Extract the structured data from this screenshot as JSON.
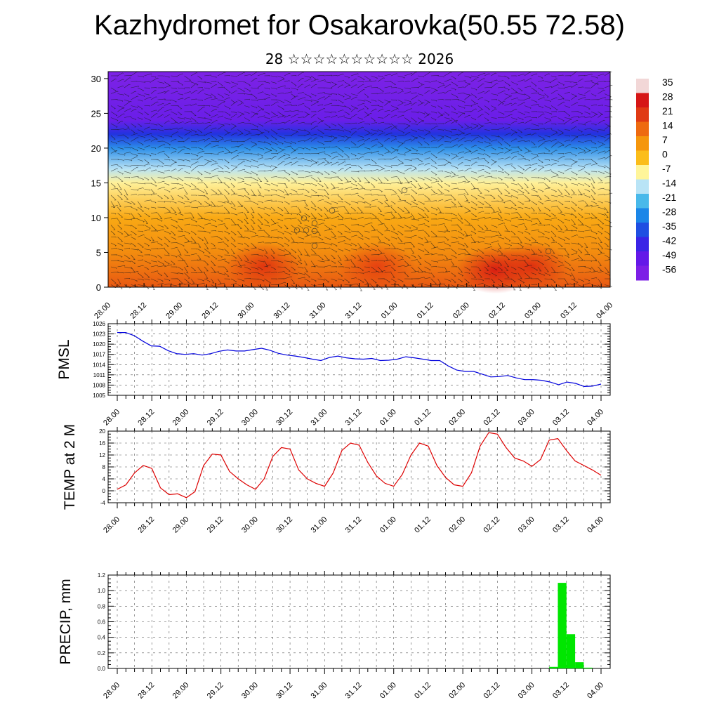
{
  "header": {
    "title": "Kazhydromet for Osakarovka(50.55 72.58)",
    "subtitle": "28 ☆☆☆☆☆☆☆☆☆☆ 2026"
  },
  "chart_data": [
    {
      "type": "heatmap",
      "name": "vertical-temperature-wind",
      "title": "",
      "xlabel": "",
      "ylabel": "",
      "x_tick_labels": [
        "28.00",
        "28.12",
        "29.00",
        "29.12",
        "30.00",
        "30.12",
        "31.00",
        "31.12",
        "01.00",
        "01.12",
        "02.00",
        "02.12",
        "03.00",
        "03.12",
        "04.00"
      ],
      "y_ticks": [
        0,
        5,
        10,
        15,
        20,
        25,
        30
      ],
      "ylim": [
        0,
        31
      ],
      "colorbar_labels": [
        "35",
        "28",
        "21",
        "14",
        "7",
        "0",
        "-7",
        "-14",
        "-21",
        "-28",
        "-35",
        "-42",
        "-49",
        "-56"
      ],
      "colorbar_colors": [
        "#f2d7d7",
        "#d61616",
        "#e03a14",
        "#ee6a10",
        "#f5960c",
        "#fbbd1a",
        "#fff59a",
        "#b9e4f6",
        "#49b9ea",
        "#1b86e8",
        "#1f4fe2",
        "#3a24e6",
        "#6418e8",
        "#7d1fe6"
      ],
      "layers": [
        {
          "height_km": 0,
          "temp_c": 14,
          "color": "#e85812"
        },
        {
          "height_km": 5,
          "temp_c": 5,
          "color": "#f38c0f"
        },
        {
          "height_km": 10,
          "temp_c": 1,
          "color": "#f9a914"
        },
        {
          "height_km": 15,
          "temp_c": -10,
          "color": "#fff199"
        },
        {
          "height_km": 17,
          "temp_c": -24,
          "color": "#b8e3f5"
        },
        {
          "height_km": 20,
          "temp_c": -35,
          "color": "#2c8ee8"
        },
        {
          "height_km": 22,
          "temp_c": -50,
          "color": "#2233e0"
        },
        {
          "height_km": 24,
          "temp_c": -56,
          "color": "#6a1ee8"
        },
        {
          "height_km": 31,
          "temp_c": -56,
          "color": "#7d22e6"
        }
      ],
      "hotspots": [
        {
          "time_index": 4.35,
          "height_km": 3,
          "temp_c": 21,
          "color": "#e0320f"
        },
        {
          "time_index": 7.5,
          "height_km": 3,
          "temp_c": 18,
          "color": "#e63f10"
        },
        {
          "time_index": 10.8,
          "height_km": 2.5,
          "temp_c": 24,
          "color": "#d81a12"
        },
        {
          "time_index": 11.8,
          "height_km": 3,
          "temp_c": 21,
          "color": "#de2c10"
        }
      ]
    },
    {
      "type": "line",
      "name": "pmsl",
      "title": "",
      "ylabel": "PMSL",
      "xlabel": "",
      "x_tick_labels": [
        "28.00",
        "28.12",
        "29.00",
        "29.12",
        "30.00",
        "30.12",
        "31.00",
        "31.12",
        "01.00",
        "01.12",
        "02.00",
        "02.12",
        "03.00",
        "03.12",
        "04.00"
      ],
      "y_ticks": [
        1005,
        1008,
        1011,
        1014,
        1017,
        1020,
        1023,
        1026
      ],
      "ylim": [
        1005,
        1026
      ],
      "color": "#0000dd",
      "values": [
        1023.4,
        1023.4,
        1022.5,
        1020.9,
        1019.5,
        1019.4,
        1018.1,
        1017.2,
        1017.0,
        1017.2,
        1016.8,
        1017.2,
        1017.9,
        1018.3,
        1018.0,
        1018.0,
        1018.4,
        1018.8,
        1018.2,
        1017.3,
        1016.8,
        1016.5,
        1016.1,
        1015.6,
        1015.2,
        1016.1,
        1016.5,
        1016.0,
        1015.7,
        1015.6,
        1015.8,
        1015.2,
        1015.3,
        1015.6,
        1016.3,
        1016.0,
        1015.6,
        1015.2,
        1015.2,
        1013.6,
        1012.4,
        1012.0,
        1012.0,
        1011.2,
        1010.4,
        1010.5,
        1010.8,
        1010.1,
        1009.6,
        1009.6,
        1009.4,
        1008.9,
        1008.1,
        1008.9,
        1008.5,
        1007.6,
        1007.7,
        1008.3
      ]
    },
    {
      "type": "line",
      "name": "temp-2m",
      "title": "",
      "ylabel": "TEMP at 2 M",
      "xlabel": "",
      "x_tick_labels": [
        "28.00",
        "28.12",
        "29.00",
        "29.12",
        "30.00",
        "30.12",
        "31.00",
        "31.12",
        "01.00",
        "01.12",
        "02.00",
        "02.12",
        "03.00",
        "03.12",
        "04.00"
      ],
      "y_ticks": [
        -4,
        0,
        4,
        8,
        12,
        16,
        20
      ],
      "ylim": [
        -4,
        20
      ],
      "color": "#dd0000",
      "values": [
        0.5,
        2,
        6,
        8.5,
        7.5,
        1,
        -1.3,
        -1,
        -2.3,
        -0.3,
        8.5,
        12.3,
        12,
        6.5,
        4,
        2,
        0.5,
        4,
        11.5,
        14.5,
        14,
        7,
        4,
        2.5,
        1.5,
        6,
        13.5,
        16,
        15.3,
        9.5,
        5,
        2.5,
        1.5,
        5.5,
        12,
        16,
        15,
        8.5,
        4.5,
        2,
        1.5,
        6,
        15,
        19.5,
        19,
        14.5,
        11,
        10,
        8.2,
        10.5,
        17,
        17.5,
        13.5,
        10,
        8.5,
        7,
        5.2
      ]
    },
    {
      "type": "bar",
      "name": "precip",
      "title": "",
      "ylabel": "PRECIP, mm",
      "xlabel": "",
      "x_tick_labels": [
        "28.00",
        "28.12",
        "29.00",
        "29.12",
        "30.00",
        "30.12",
        "31.00",
        "31.12",
        "01.00",
        "01.12",
        "02.00",
        "02.12",
        "03.00",
        "03.12",
        "04.00"
      ],
      "y_ticks": [
        0.0,
        0.2,
        0.4,
        0.6,
        0.8,
        1.0,
        1.2
      ],
      "y_tick_labels": [
        "0.0",
        "0.2",
        "0.4",
        "0.6",
        "0.8",
        "1.0",
        "1.2"
      ],
      "ylim": [
        0,
        1.2
      ],
      "color": "#00e600",
      "bars": [
        {
          "start_index": 12.5,
          "end_index": 12.75,
          "value": 0.02
        },
        {
          "start_index": 12.75,
          "end_index": 13.0,
          "value": 1.1
        },
        {
          "start_index": 13.0,
          "end_index": 13.25,
          "value": 0.44
        },
        {
          "start_index": 13.25,
          "end_index": 13.5,
          "value": 0.08
        },
        {
          "start_index": 13.5,
          "end_index": 13.75,
          "value": 0.01
        }
      ]
    }
  ]
}
